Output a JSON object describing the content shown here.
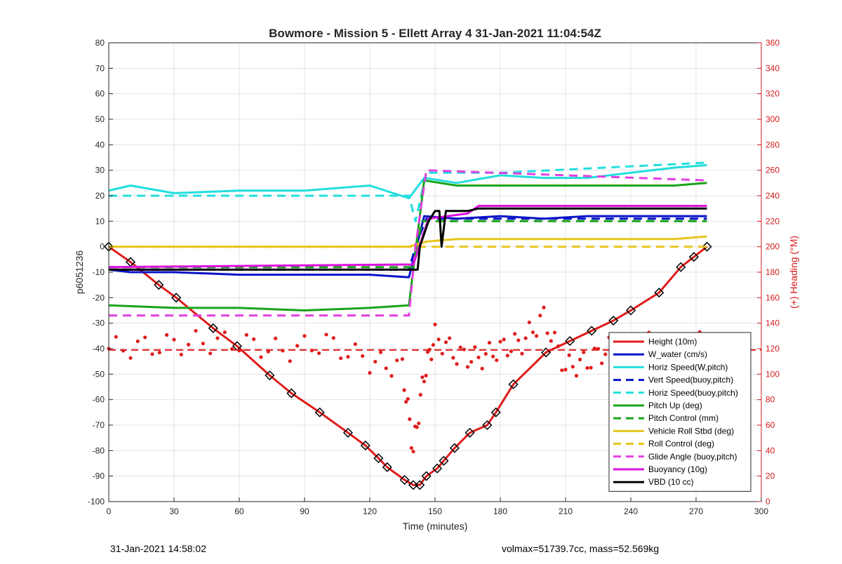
{
  "chart_data": {
    "type": "line",
    "title": "Bowmore - Mission 5 - Ellett Array 4 31-Jan-2021 11:04:54Z",
    "xlabel": "Time (minutes)",
    "ylabel": "p6051236",
    "y2label": "(+) Heading (°M)",
    "xlim": [
      0,
      300
    ],
    "ylim": [
      -100,
      80
    ],
    "y2lim": [
      0,
      360
    ],
    "xticks": [
      0,
      30,
      60,
      90,
      120,
      150,
      180,
      210,
      240,
      270,
      300
    ],
    "yticks": [
      -100,
      -90,
      -80,
      -70,
      -60,
      -50,
      -40,
      -30,
      -20,
      -10,
      0,
      10,
      20,
      30,
      40,
      50,
      60,
      70,
      80
    ],
    "y2ticks": [
      0,
      20,
      40,
      60,
      80,
      100,
      120,
      140,
      160,
      180,
      200,
      220,
      240,
      260,
      280,
      300,
      320,
      340,
      360
    ],
    "grid": true,
    "legend_position": "bottom-right",
    "series": [
      {
        "name": "Height (10m)",
        "color": "#e01b1b",
        "style": "solid",
        "marker": "diamond",
        "x": [
          0,
          10,
          23,
          31,
          48,
          59,
          74,
          84,
          97,
          110,
          118,
          124,
          128,
          136,
          140,
          143,
          146,
          151,
          154,
          159,
          166,
          174,
          178,
          186,
          201,
          212,
          222,
          232,
          240,
          253,
          263,
          269,
          275
        ],
        "y": [
          0,
          -6,
          -15,
          -20,
          -32,
          -39,
          -50.5,
          -57.5,
          -65,
          -73,
          -78,
          -83,
          -86.5,
          -91.5,
          -93.5,
          -93.5,
          -90,
          -87,
          -84,
          -79,
          -73,
          -70,
          -65,
          -54,
          -41.5,
          -37,
          -33,
          -29,
          -25,
          -18,
          -8,
          -4,
          0
        ]
      },
      {
        "name": "W_water (cm/s)",
        "color": "#0a14c8",
        "style": "solid",
        "x": [
          0,
          10,
          30,
          60,
          90,
          120,
          138,
          145,
          160,
          180,
          200,
          220,
          240,
          260,
          275
        ],
        "y": [
          -9,
          -10,
          -10,
          -11,
          -11,
          -11,
          -12,
          12,
          11,
          12,
          11,
          12,
          12,
          12,
          12
        ]
      },
      {
        "name": "Horiz Speed(W,pitch)",
        "color": "#22dede",
        "style": "solid",
        "x": [
          0,
          10,
          30,
          60,
          90,
          120,
          138,
          145,
          160,
          180,
          200,
          220,
          240,
          260,
          275
        ],
        "y": [
          22,
          24,
          21,
          22,
          22,
          24,
          19,
          27,
          25,
          28,
          27,
          27,
          29,
          31,
          32
        ]
      },
      {
        "name": "Vert Speed(buoy,pitch)",
        "color": "#0a14c8",
        "style": "dashed",
        "x": [
          0,
          138,
          141,
          146,
          275
        ],
        "y": [
          -9,
          -9,
          0,
          11,
          11
        ]
      },
      {
        "name": "Horiz Speed(buoy,pitch)",
        "color": "#22dede",
        "style": "dashed",
        "x": [
          0,
          138,
          141,
          146,
          180,
          275
        ],
        "y": [
          20,
          20,
          10,
          29,
          29,
          33
        ]
      },
      {
        "name": "Pitch Up (deg)",
        "color": "#1aa31a",
        "style": "solid",
        "x": [
          0,
          30,
          60,
          90,
          120,
          138,
          145,
          160,
          180,
          200,
          220,
          240,
          260,
          275
        ],
        "y": [
          -23,
          -24,
          -24,
          -25,
          -24,
          -23,
          26,
          24,
          24,
          24,
          24,
          24,
          24,
          25
        ]
      },
      {
        "name": "Pitch Control (mm)",
        "color": "#1aa31a",
        "style": "dashed",
        "x": [
          0,
          140,
          144,
          275
        ],
        "y": [
          -8,
          -8,
          10,
          10
        ]
      },
      {
        "name": "Vehicle Roll Stbd (deg)",
        "color": "#e6c51c",
        "style": "solid",
        "x": [
          0,
          30,
          60,
          90,
          120,
          138,
          146,
          160,
          180,
          200,
          220,
          240,
          260,
          275
        ],
        "y": [
          0,
          0,
          0,
          0,
          0,
          0,
          2,
          3,
          3,
          3,
          3,
          3,
          3,
          4
        ]
      },
      {
        "name": "Roll Control (deg)",
        "color": "#e6c51c",
        "style": "dashed",
        "x": [
          0,
          140,
          146,
          275
        ],
        "y": [
          0,
          0,
          0,
          0
        ]
      },
      {
        "name": "Glide Angle (buoy,pitch)",
        "color": "#e23fe0",
        "style": "dashed",
        "x": [
          0,
          138,
          141,
          146,
          275
        ],
        "y": [
          -27,
          -27,
          0,
          30,
          26
        ]
      },
      {
        "name": "Buoyancy (10g)",
        "color": "#e010e0",
        "style": "solid",
        "x": [
          0,
          135,
          140,
          147,
          165,
          170,
          275
        ],
        "y": [
          -8,
          -7,
          -7,
          11,
          13,
          16,
          16
        ]
      },
      {
        "name": "VBD (10 cc)",
        "color": "#000000",
        "style": "solid",
        "x": [
          0,
          142,
          143,
          147,
          150,
          152,
          153,
          155,
          165,
          170,
          275
        ],
        "y": [
          -9,
          -9,
          0,
          10,
          14,
          14,
          0,
          14,
          14,
          15,
          15
        ]
      },
      {
        "name": "Heading",
        "color": "#e01b1b",
        "style": "dots",
        "axis": "right",
        "x": [
          0,
          20,
          40,
          60,
          80,
          100,
          120,
          135,
          140,
          145,
          150,
          160,
          170,
          180,
          190,
          200,
          210,
          220,
          230,
          240,
          250,
          260,
          270,
          275
        ],
        "y": [
          120,
          122,
          125,
          125,
          118,
          125,
          110,
          105,
          40,
          100,
          130,
          115,
          112,
          120,
          125,
          145,
          105,
          110,
          120,
          120,
          125,
          120,
          125,
          122
        ],
        "mean_line": 119
      }
    ]
  },
  "footer": {
    "timestamp": "31-Jan-2021 14:58:02",
    "stats": "volmax=51739.7cc, mass=52.569kg"
  }
}
